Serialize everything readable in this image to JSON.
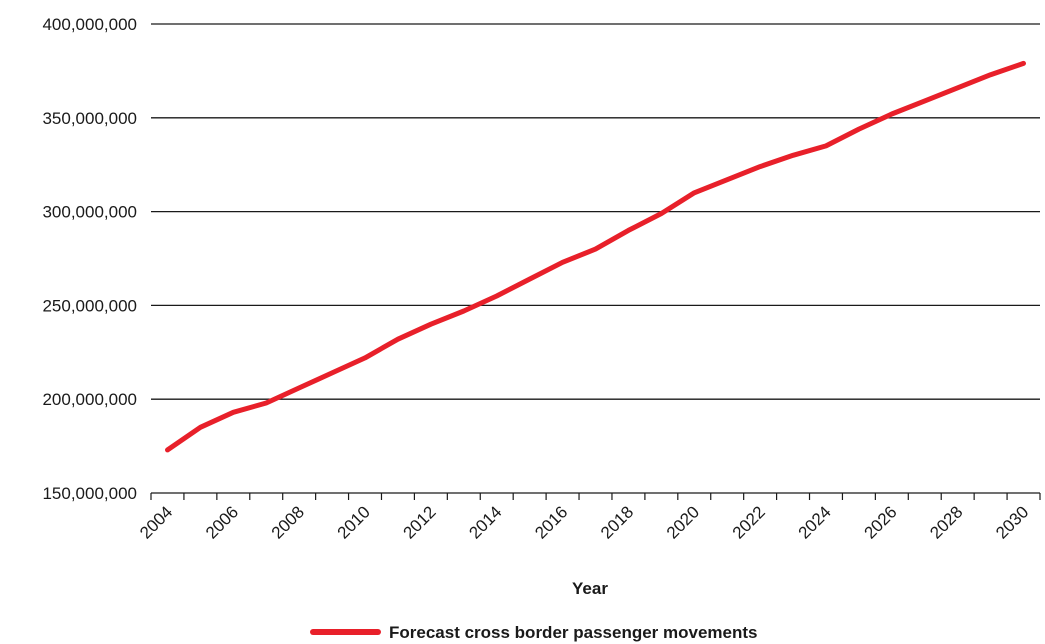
{
  "chart_data": {
    "type": "line",
    "title": "",
    "xlabel": "Year",
    "ylabel": "",
    "x": [
      2004,
      2005,
      2006,
      2007,
      2008,
      2009,
      2010,
      2011,
      2012,
      2013,
      2014,
      2015,
      2016,
      2017,
      2018,
      2019,
      2020,
      2021,
      2022,
      2023,
      2024,
      2025,
      2026,
      2027,
      2028,
      2029,
      2030
    ],
    "x_tick_labels": [
      "2004",
      "2006",
      "2008",
      "2010",
      "2012",
      "2014",
      "2016",
      "2018",
      "2020",
      "2022",
      "2024",
      "2026",
      "2028",
      "2030"
    ],
    "y_tick_values": [
      150000000,
      200000000,
      250000000,
      300000000,
      350000000,
      400000000
    ],
    "y_tick_labels": [
      "150,000,000",
      "200,000,000",
      "250,000,000",
      "300,000,000",
      "350,000,000",
      "400,000,000"
    ],
    "ylim": [
      150000000,
      400000000
    ],
    "xlim": [
      2003.5,
      2030.5
    ],
    "grid": "horizontal",
    "legend_position": "bottom",
    "series": [
      {
        "name": "Forecast cross border passenger movements",
        "color": "#e8202a",
        "values": [
          173000000,
          185000000,
          193000000,
          198000000,
          206000000,
          214000000,
          222000000,
          232000000,
          240000000,
          247000000,
          255000000,
          264000000,
          273000000,
          280000000,
          290000000,
          299000000,
          310000000,
          317000000,
          324000000,
          330000000,
          335000000,
          344000000,
          352000000,
          359000000,
          366000000,
          373000000,
          379000000
        ]
      }
    ]
  }
}
